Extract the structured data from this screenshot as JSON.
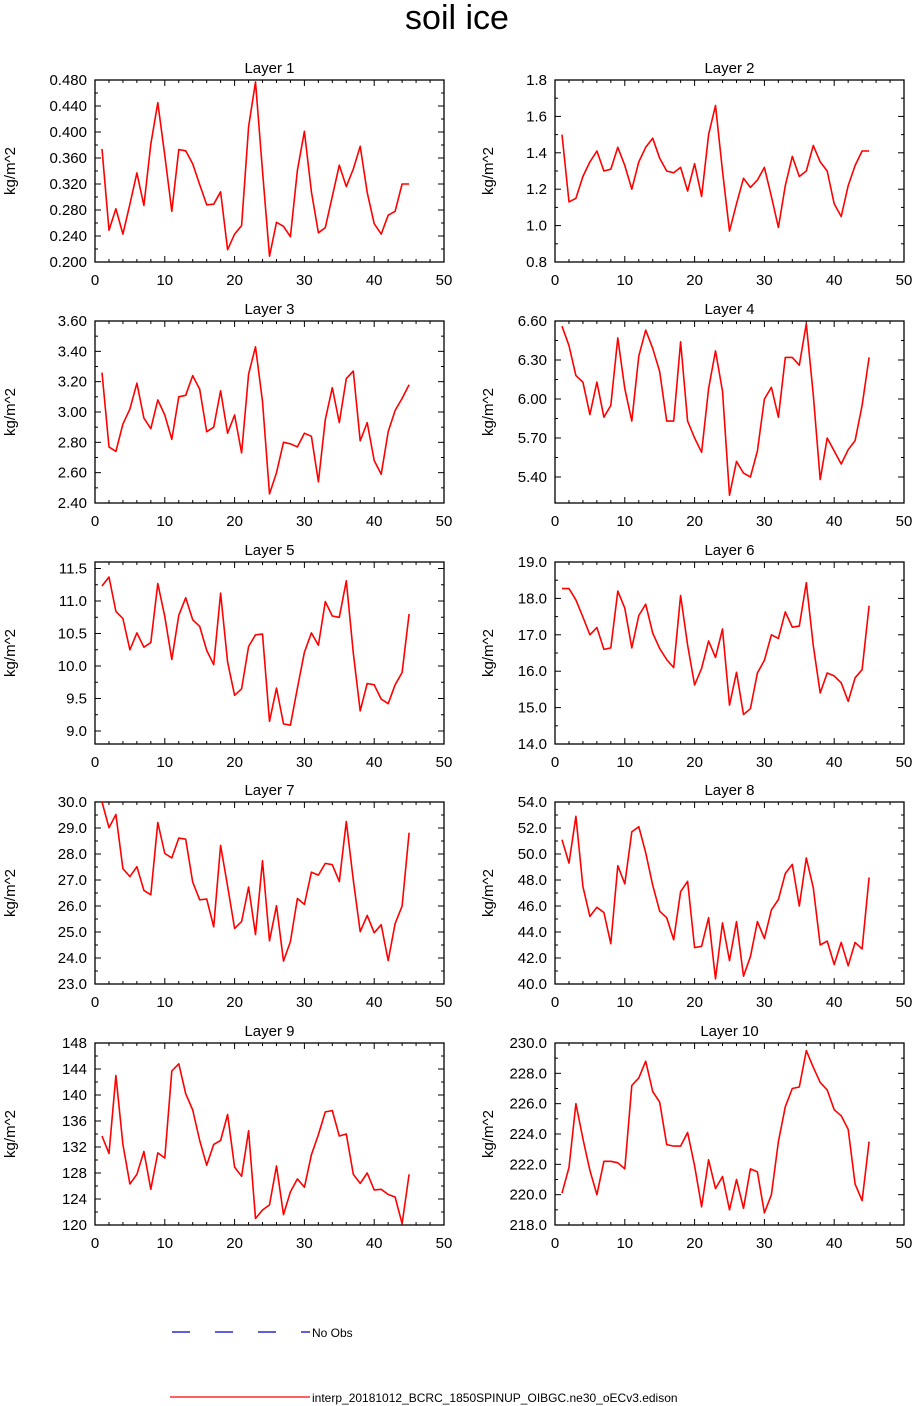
{
  "title": "soil ice",
  "legend": {
    "obs_label": "No Obs",
    "model_label": "interp_20181012_BCRC_1850SPINUP_OIBGC.ne30_oECv3.edison",
    "model_color": "#ff0000",
    "obs_color": "#0000cc"
  },
  "chart_data": [
    {
      "type": "line",
      "title": "Layer 1",
      "ylabel": "kg/m^2",
      "xlim": [
        0,
        50
      ],
      "ylim": [
        0.2,
        0.48
      ],
      "xticks": [
        "0",
        "10",
        "20",
        "30",
        "40",
        "50"
      ],
      "yticks": [
        "0.200",
        "0.240",
        "0.280",
        "0.320",
        "0.360",
        "0.400",
        "0.440",
        "0.480"
      ],
      "series": [
        {
          "values": [
            0.374,
            0.249,
            0.282,
            0.243,
            0.289,
            0.337,
            0.287,
            0.381,
            0.445,
            0.364,
            0.278,
            0.373,
            0.371,
            0.351,
            0.319,
            0.288,
            0.289,
            0.308,
            0.219,
            0.243,
            0.256,
            0.408,
            0.477,
            0.34,
            0.209,
            0.261,
            0.255,
            0.239,
            0.341,
            0.401,
            0.308,
            0.245,
            0.253,
            0.301,
            0.349,
            0.316,
            0.343,
            0.378,
            0.307,
            0.259,
            0.243,
            0.272,
            0.278,
            0.32,
            0.32
          ]
        }
      ]
    },
    {
      "type": "line",
      "title": "Layer 2",
      "ylabel": "kg/m^2",
      "xlim": [
        0,
        50
      ],
      "ylim": [
        0.8,
        1.8
      ],
      "xticks": [
        "0",
        "10",
        "20",
        "30",
        "40",
        "50"
      ],
      "yticks": [
        "0.8",
        "1.0",
        "1.2",
        "1.4",
        "1.6",
        "1.8"
      ],
      "series": [
        {
          "values": [
            1.5,
            1.13,
            1.15,
            1.27,
            1.35,
            1.41,
            1.3,
            1.31,
            1.43,
            1.33,
            1.2,
            1.35,
            1.43,
            1.48,
            1.37,
            1.3,
            1.29,
            1.32,
            1.19,
            1.34,
            1.16,
            1.5,
            1.66,
            1.3,
            0.97,
            1.12,
            1.26,
            1.21,
            1.25,
            1.32,
            1.16,
            0.99,
            1.22,
            1.38,
            1.27,
            1.3,
            1.44,
            1.35,
            1.3,
            1.12,
            1.05,
            1.22,
            1.33,
            1.41,
            1.41
          ]
        }
      ]
    },
    {
      "type": "line",
      "title": "Layer 3",
      "ylabel": "kg/m^2",
      "xlim": [
        0,
        50
      ],
      "ylim": [
        2.4,
        3.6
      ],
      "xticks": [
        "0",
        "10",
        "20",
        "30",
        "40",
        "50"
      ],
      "yticks": [
        "2.40",
        "2.60",
        "2.80",
        "3.00",
        "3.20",
        "3.40",
        "3.60"
      ],
      "series": [
        {
          "values": [
            3.26,
            2.77,
            2.74,
            2.92,
            3.02,
            3.19,
            2.96,
            2.89,
            3.08,
            2.98,
            2.82,
            3.1,
            3.11,
            3.24,
            3.15,
            2.87,
            2.9,
            3.14,
            2.86,
            2.98,
            2.73,
            3.25,
            3.43,
            3.07,
            2.46,
            2.6,
            2.8,
            2.79,
            2.77,
            2.86,
            2.84,
            2.54,
            2.95,
            3.16,
            2.93,
            3.22,
            3.27,
            2.81,
            2.93,
            2.68,
            2.59,
            2.87,
            3.01,
            3.09,
            3.18
          ]
        }
      ]
    },
    {
      "type": "line",
      "title": "Layer 4",
      "ylabel": "kg/m^2",
      "xlim": [
        0,
        50
      ],
      "ylim": [
        5.2,
        6.6
      ],
      "xticks": [
        "0",
        "10",
        "20",
        "30",
        "40",
        "50"
      ],
      "yticks": [
        "5.40",
        "5.70",
        "6.00",
        "6.30",
        "6.60"
      ],
      "series": [
        {
          "values": [
            6.56,
            6.41,
            6.18,
            6.13,
            5.88,
            6.13,
            5.86,
            5.95,
            6.47,
            6.08,
            5.83,
            6.33,
            6.53,
            6.39,
            6.21,
            5.83,
            5.83,
            6.44,
            5.83,
            5.7,
            5.59,
            6.08,
            6.37,
            6.06,
            5.26,
            5.52,
            5.43,
            5.4,
            5.6,
            6.0,
            6.09,
            5.86,
            6.32,
            6.32,
            6.26,
            6.58,
            6.03,
            5.38,
            5.7,
            5.6,
            5.5,
            5.61,
            5.68,
            5.95,
            6.32
          ]
        }
      ]
    },
    {
      "type": "line",
      "title": "Layer 5",
      "ylabel": "kg/m^2",
      "xlim": [
        0,
        50
      ],
      "ylim": [
        8.8,
        11.6
      ],
      "xticks": [
        "0",
        "10",
        "20",
        "30",
        "40",
        "50"
      ],
      "yticks": [
        "9.0",
        "9.5",
        "10.0",
        "10.5",
        "11.0",
        "11.5"
      ],
      "series": [
        {
          "values": [
            11.23,
            11.37,
            10.84,
            10.73,
            10.25,
            10.51,
            10.29,
            10.36,
            11.27,
            10.76,
            10.1,
            10.78,
            11.05,
            10.71,
            10.61,
            10.24,
            10.02,
            11.12,
            10.06,
            9.55,
            9.65,
            10.3,
            10.48,
            10.49,
            9.15,
            9.66,
            9.11,
            9.09,
            9.66,
            10.21,
            10.51,
            10.32,
            10.99,
            10.77,
            10.75,
            11.31,
            10.2,
            9.31,
            9.73,
            9.71,
            9.49,
            9.42,
            9.71,
            9.9,
            10.8
          ]
        }
      ]
    },
    {
      "type": "line",
      "title": "Layer 6",
      "ylabel": "kg/m^2",
      "xlim": [
        0,
        50
      ],
      "ylim": [
        14.0,
        19.0
      ],
      "xticks": [
        "0",
        "10",
        "20",
        "30",
        "40",
        "50"
      ],
      "yticks": [
        "14.0",
        "15.0",
        "16.0",
        "17.0",
        "18.0",
        "19.0"
      ],
      "series": [
        {
          "values": [
            18.27,
            18.27,
            17.96,
            17.49,
            17.0,
            17.2,
            16.6,
            16.64,
            18.2,
            17.73,
            16.64,
            17.53,
            17.84,
            17.05,
            16.62,
            16.32,
            16.1,
            18.08,
            16.72,
            15.62,
            16.08,
            16.83,
            16.38,
            17.16,
            15.07,
            15.97,
            14.81,
            14.97,
            15.95,
            16.3,
            17.0,
            16.9,
            17.63,
            17.21,
            17.24,
            18.43,
            16.7,
            15.4,
            15.95,
            15.87,
            15.68,
            15.17,
            15.82,
            16.04,
            17.8
          ]
        }
      ]
    },
    {
      "type": "line",
      "title": "Layer 7",
      "ylabel": "kg/m^2",
      "xlim": [
        0,
        50
      ],
      "ylim": [
        23.0,
        30.0
      ],
      "xticks": [
        "0",
        "10",
        "20",
        "30",
        "40",
        "50"
      ],
      "yticks": [
        "23.0",
        "24.0",
        "25.0",
        "26.0",
        "27.0",
        "28.0",
        "29.0",
        "30.0"
      ],
      "series": [
        {
          "values": [
            30.0,
            29.01,
            29.52,
            27.44,
            27.13,
            27.51,
            26.6,
            26.43,
            29.21,
            28.02,
            27.85,
            28.61,
            28.57,
            26.92,
            26.24,
            26.27,
            25.2,
            28.33,
            26.76,
            25.14,
            25.4,
            26.73,
            24.9,
            27.74,
            24.66,
            26.01,
            23.88,
            24.63,
            26.29,
            26.06,
            27.3,
            27.19,
            27.64,
            27.59,
            26.94,
            29.25,
            27.0,
            25.01,
            25.64,
            24.97,
            25.28,
            23.9,
            25.32,
            26.0,
            28.82
          ]
        }
      ]
    },
    {
      "type": "line",
      "title": "Layer 8",
      "ylabel": "kg/m^2",
      "xlim": [
        0,
        50
      ],
      "ylim": [
        40.0,
        54.0
      ],
      "xticks": [
        "0",
        "10",
        "20",
        "30",
        "40",
        "50"
      ],
      "yticks": [
        "40.0",
        "42.0",
        "44.0",
        "46.0",
        "48.0",
        "50.0",
        "52.0",
        "54.0"
      ],
      "series": [
        {
          "values": [
            51.1,
            49.3,
            52.9,
            47.5,
            45.2,
            45.9,
            45.5,
            43.1,
            49.1,
            47.7,
            51.7,
            52.1,
            50.1,
            47.6,
            45.6,
            45.1,
            43.4,
            47.1,
            47.9,
            42.8,
            42.9,
            45.1,
            40.4,
            44.7,
            41.8,
            44.8,
            40.6,
            42.1,
            44.8,
            43.5,
            45.7,
            46.5,
            48.5,
            49.2,
            46.0,
            49.7,
            47.4,
            43.0,
            43.3,
            41.5,
            43.2,
            41.4,
            43.2,
            42.7,
            48.2
          ]
        }
      ]
    },
    {
      "type": "line",
      "title": "Layer 9",
      "ylabel": "kg/m^2",
      "xlim": [
        0,
        50
      ],
      "ylim": [
        120,
        148
      ],
      "xticks": [
        "0",
        "10",
        "20",
        "30",
        "40",
        "50"
      ],
      "yticks": [
        "120",
        "124",
        "128",
        "132",
        "136",
        "140",
        "144",
        "148"
      ],
      "series": [
        {
          "values": [
            133.7,
            131.0,
            143.0,
            132.4,
            126.3,
            127.8,
            131.3,
            125.5,
            131.1,
            130.3,
            143.7,
            144.8,
            140.2,
            137.7,
            133.0,
            129.2,
            132.4,
            133.0,
            137.0,
            128.9,
            127.5,
            134.5,
            121.0,
            122.3,
            123.1,
            129.1,
            121.6,
            125.1,
            127.1,
            125.8,
            130.8,
            133.9,
            137.4,
            137.6,
            133.7,
            134.0,
            127.8,
            126.4,
            128.0,
            125.4,
            125.5,
            124.7,
            124.3,
            120.2,
            127.8
          ]
        }
      ]
    },
    {
      "type": "line",
      "title": "Layer 10",
      "ylabel": "kg/m^2",
      "xlim": [
        0,
        50
      ],
      "ylim": [
        218.0,
        230.0
      ],
      "xticks": [
        "0",
        "10",
        "20",
        "30",
        "40",
        "50"
      ],
      "yticks": [
        "218.0",
        "220.0",
        "222.0",
        "224.0",
        "226.0",
        "228.0",
        "230.0"
      ],
      "series": [
        {
          "values": [
            220.1,
            221.8,
            226.0,
            223.7,
            221.6,
            220.0,
            222.2,
            222.2,
            222.1,
            221.7,
            227.2,
            227.7,
            228.8,
            226.8,
            226.1,
            223.3,
            223.2,
            223.2,
            224.1,
            221.9,
            219.2,
            222.3,
            220.4,
            221.2,
            219.0,
            221.0,
            219.1,
            221.7,
            221.5,
            218.8,
            220.0,
            223.5,
            225.8,
            227.0,
            227.1,
            229.5,
            228.4,
            227.4,
            226.9,
            225.6,
            225.2,
            224.3,
            220.7,
            219.6,
            223.5
          ]
        }
      ]
    }
  ]
}
